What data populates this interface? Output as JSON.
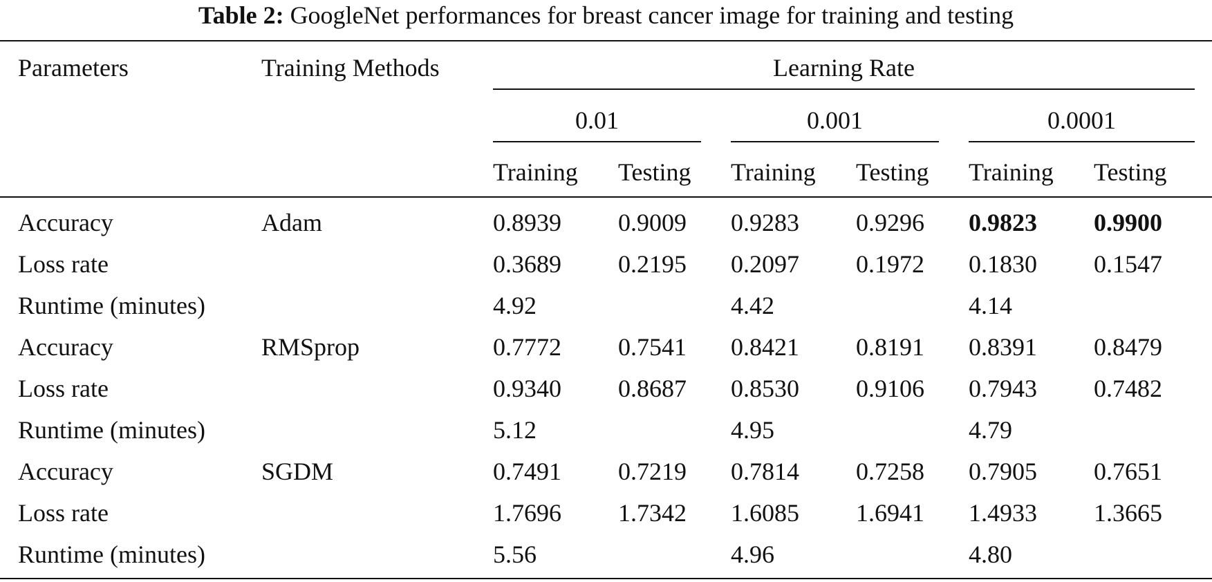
{
  "caption": {
    "label": "Table 2:",
    "text": "GoogleNet performances for breast cancer image for training and testing"
  },
  "headers": {
    "parameters": "Parameters",
    "methods": "Training Methods",
    "group": "Learning Rate",
    "rates": [
      "0.01",
      "0.001",
      "0.0001"
    ],
    "phases": [
      "Training",
      "Testing",
      "Training",
      "Testing",
      "Training",
      "Testing"
    ]
  },
  "rows": [
    {
      "param": "Accuracy",
      "method": "Adam",
      "values": [
        "0.8939",
        "0.9009",
        "0.9283",
        "0.9296",
        "0.9823",
        "0.9900"
      ]
    },
    {
      "param": "Loss rate",
      "method": "",
      "values": [
        "0.3689",
        "0.2195",
        "0.2097",
        "0.1972",
        "0.1830",
        "0.1547"
      ]
    },
    {
      "param": "Runtime (minutes)",
      "method": "",
      "values": [
        "4.92",
        "",
        "4.42",
        "",
        "4.14",
        ""
      ]
    },
    {
      "param": "Accuracy",
      "method": "RMSprop",
      "values": [
        "0.7772",
        "0.7541",
        "0.8421",
        "0.8191",
        "0.8391",
        "0.8479"
      ]
    },
    {
      "param": "Loss rate",
      "method": "",
      "values": [
        "0.9340",
        "0.8687",
        "0.8530",
        "0.9106",
        "0.7943",
        "0.7482"
      ]
    },
    {
      "param": "Runtime (minutes)",
      "method": "",
      "values": [
        "5.12",
        "",
        "4.95",
        "",
        "4.79",
        ""
      ]
    },
    {
      "param": "Accuracy",
      "method": "SGDM",
      "values": [
        "0.7491",
        "0.7219",
        "0.7814",
        "0.7258",
        "0.7905",
        "0.7651"
      ]
    },
    {
      "param": "Loss rate",
      "method": "",
      "values": [
        "1.7696",
        "1.7342",
        "1.6085",
        "1.6941",
        "1.4933",
        "1.3665"
      ]
    },
    {
      "param": "Runtime (minutes)",
      "method": "",
      "values": [
        "5.56",
        "",
        "4.96",
        "",
        "4.80",
        ""
      ]
    }
  ]
}
